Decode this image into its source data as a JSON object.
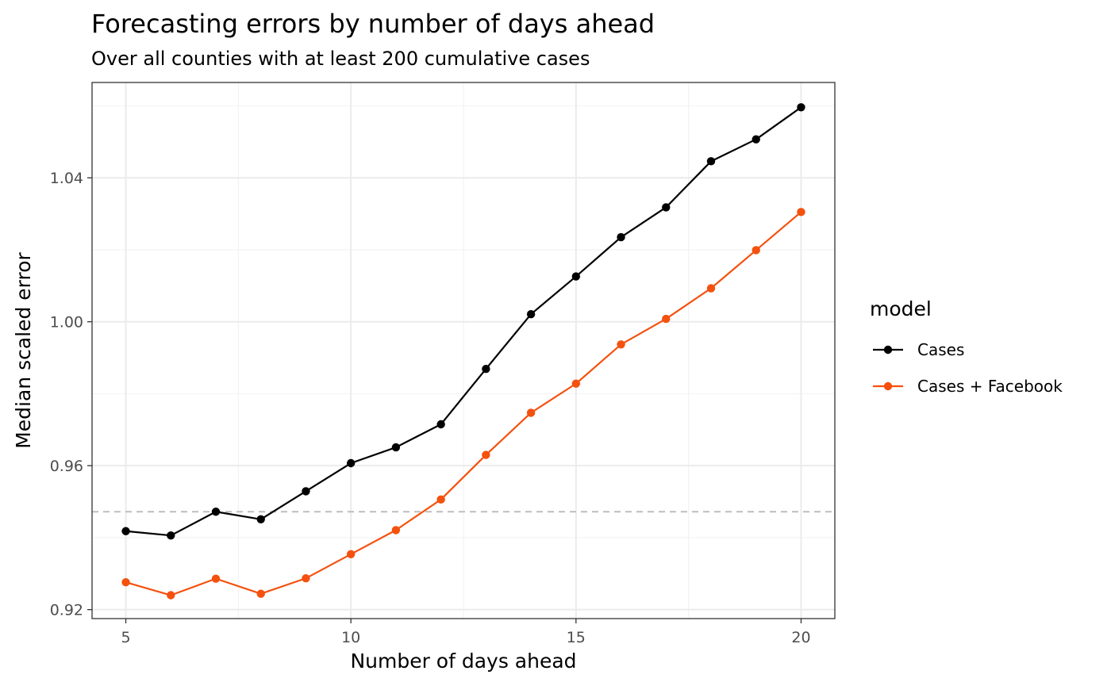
{
  "chart_data": {
    "type": "line",
    "title": "Forecasting errors by number of days ahead",
    "subtitle": "Over all counties with at least 200 cumulative cases",
    "xlabel": "Number of days ahead",
    "ylabel": "Median scaled error",
    "xlim": [
      4.25,
      20.75
    ],
    "ylim": [
      0.9175,
      1.0665
    ],
    "x_ticks": [
      5,
      10,
      15,
      20
    ],
    "y_ticks": [
      0.92,
      0.96,
      1.0,
      1.04
    ],
    "x_tick_labels": [
      "5",
      "10",
      "15",
      "20"
    ],
    "y_tick_labels": [
      "0.92",
      "0.96",
      "1.00",
      "1.04"
    ],
    "reference_line": {
      "y": 0.9472,
      "style": "dashed",
      "color": "#bdbdbd"
    },
    "grid": true,
    "legend": {
      "title": "model",
      "placement": "right"
    },
    "x": [
      5,
      6,
      7,
      8,
      9,
      10,
      11,
      12,
      13,
      14,
      15,
      16,
      17,
      18,
      19,
      20
    ],
    "series": [
      {
        "name": "Cases",
        "color": "#000000",
        "values": [
          0.9418,
          0.9406,
          0.9472,
          0.9451,
          0.9529,
          0.9607,
          0.9651,
          0.9715,
          0.9869,
          1.0021,
          1.0126,
          1.0235,
          1.0318,
          1.0446,
          1.0507,
          1.0596
        ]
      },
      {
        "name": "Cases + Facebook",
        "color": "#f4510f",
        "values": [
          0.9276,
          0.924,
          0.9286,
          0.9244,
          0.9287,
          0.9354,
          0.9421,
          0.9506,
          0.963,
          0.9747,
          0.9828,
          0.9937,
          1.0008,
          1.0093,
          1.0199,
          1.0305
        ]
      }
    ]
  }
}
